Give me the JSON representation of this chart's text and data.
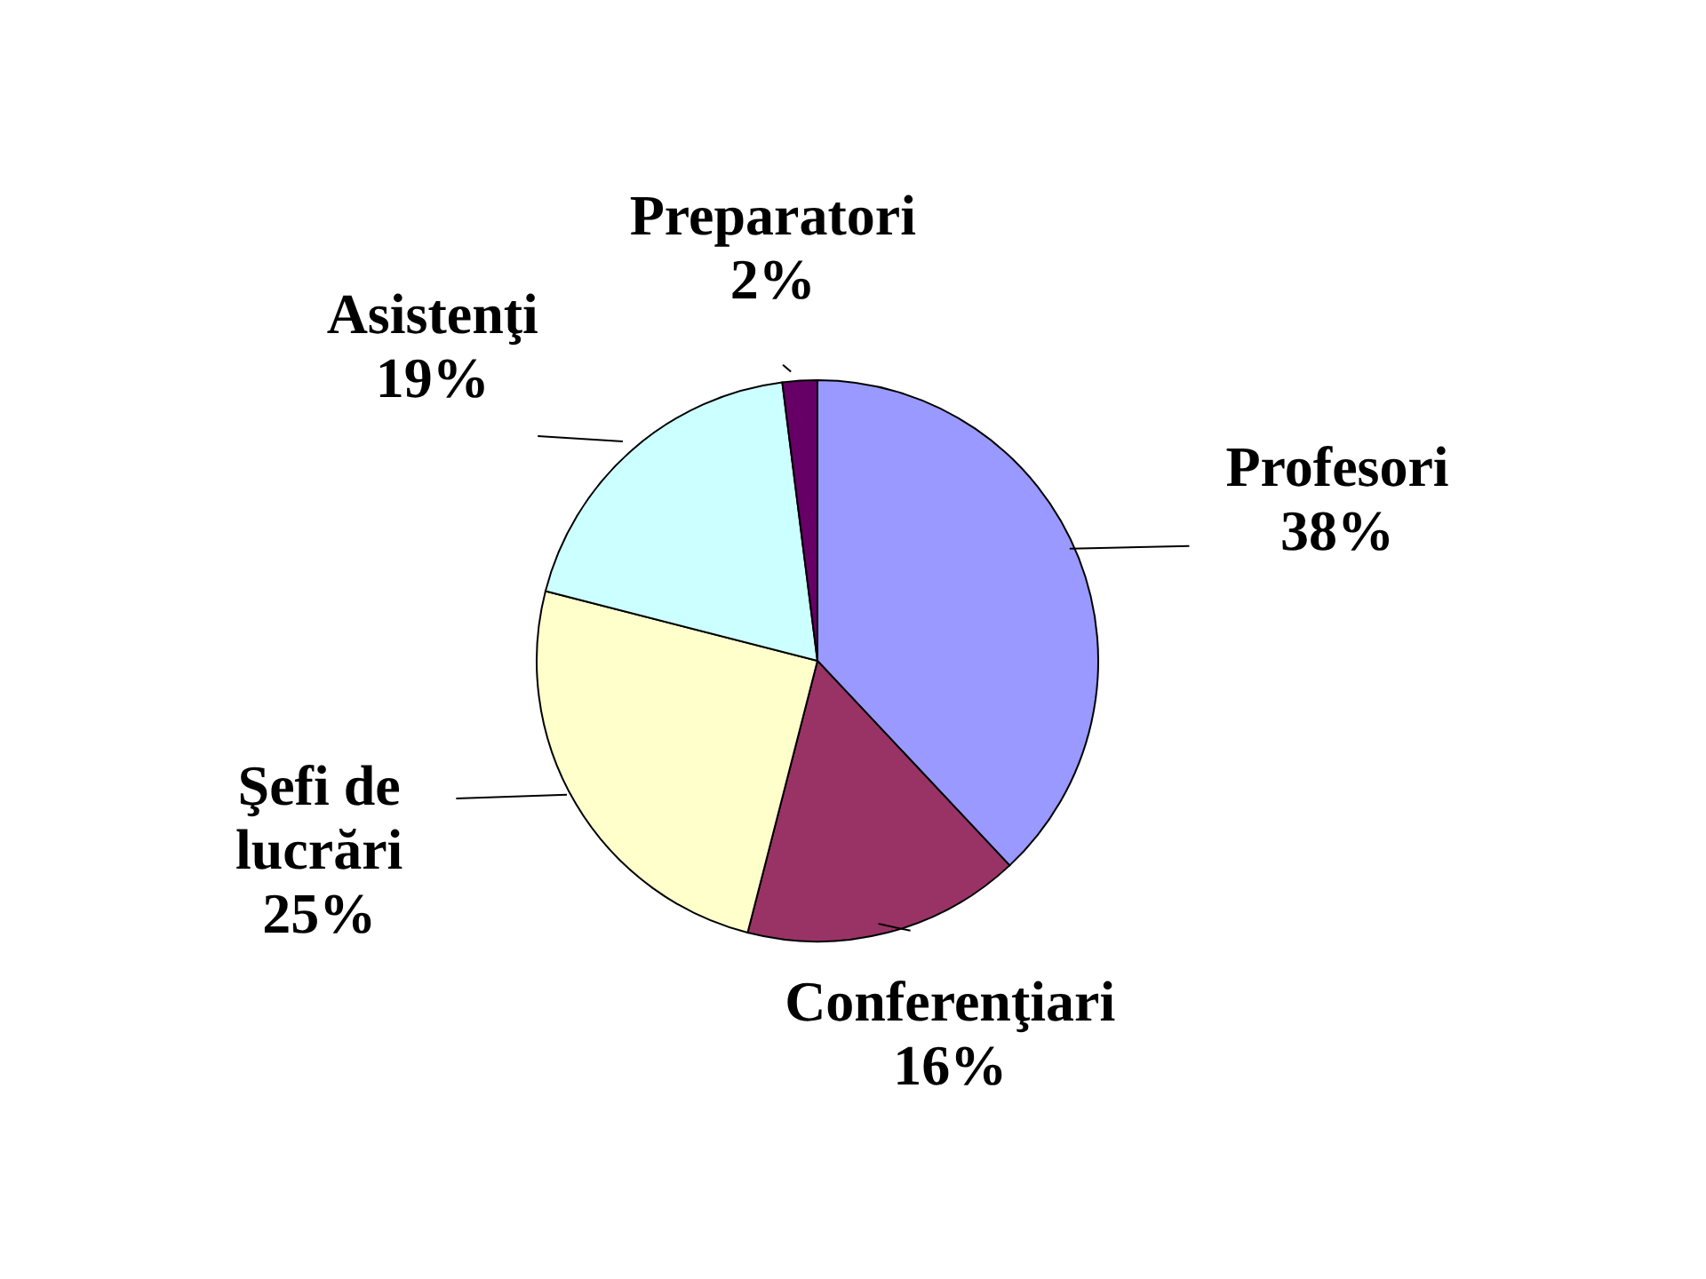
{
  "chart_data": {
    "type": "pie",
    "categories": [
      "Profesori",
      "Conferenţiari",
      "Şefi de lucrări",
      "Asistenţi",
      "Preparatori"
    ],
    "values": [
      38,
      16,
      25,
      19,
      2
    ],
    "value_labels": [
      "38%",
      "16%",
      "25%",
      "19%",
      "2%"
    ],
    "colors": [
      "#9999ff",
      "#993366",
      "#ffffcc",
      "#ccffff",
      "#660066"
    ]
  }
}
